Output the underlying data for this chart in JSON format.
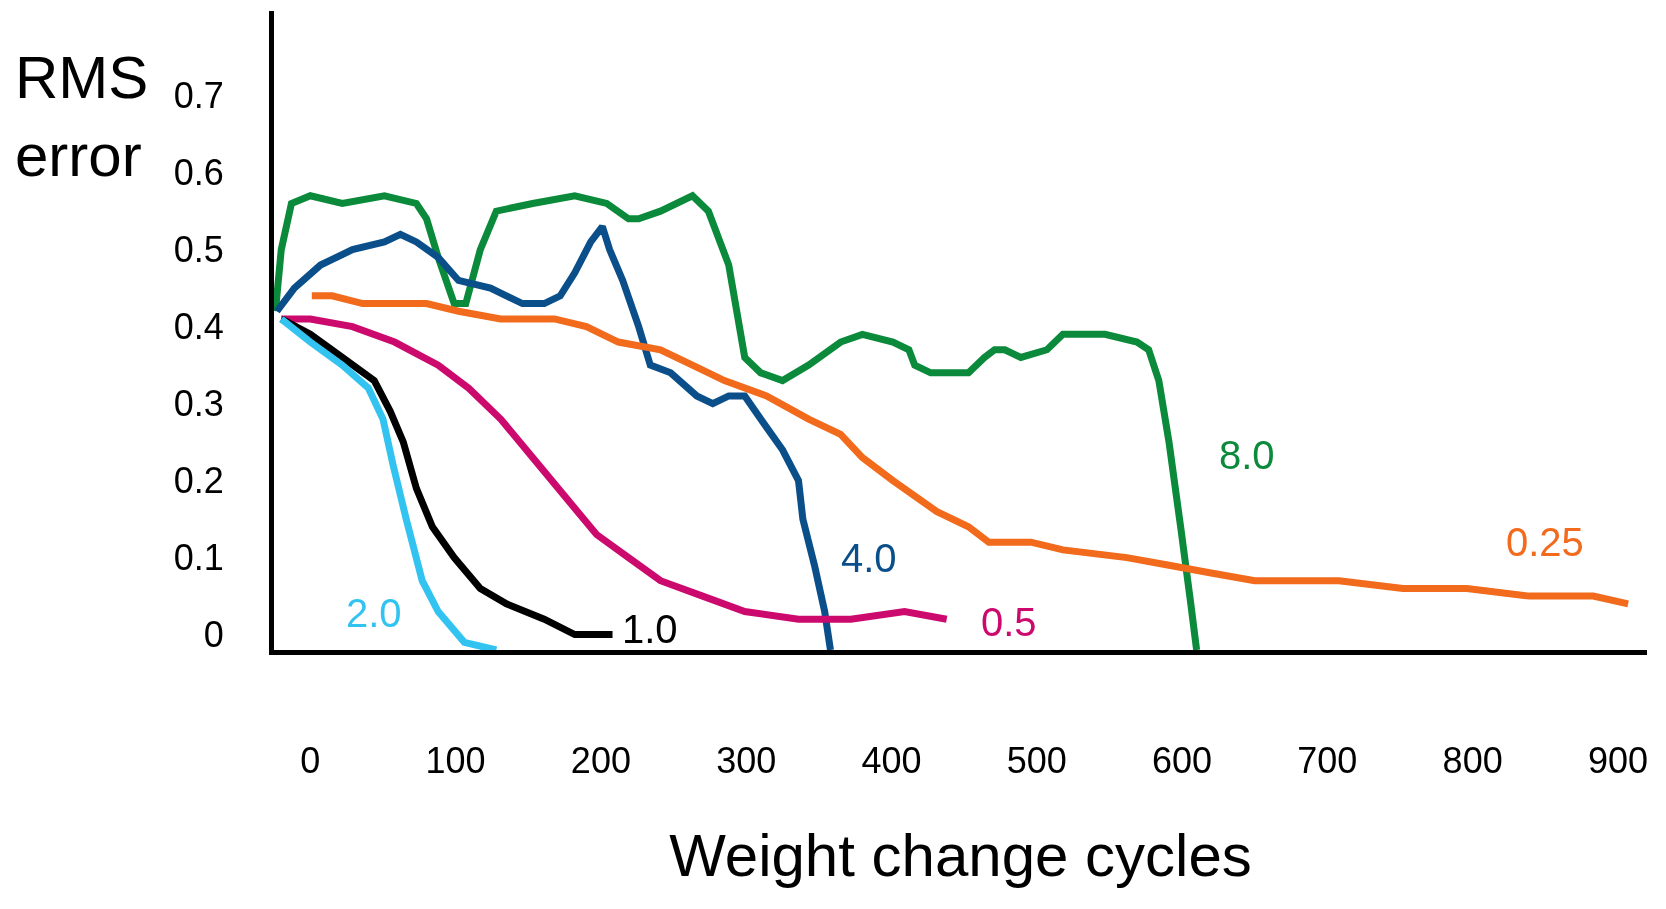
{
  "chart_data": {
    "type": "line",
    "xlabel": "Weight change cycles",
    "ylabel": "RMS\nerror",
    "xlim": [
      -25,
      920
    ],
    "ylim": [
      -0.02,
      0.81
    ],
    "xticks": [
      0,
      100,
      200,
      300,
      400,
      500,
      600,
      700,
      800,
      900
    ],
    "yticks": [
      {
        "value": 0,
        "label": "0"
      },
      0.1,
      0.2,
      0.3,
      0.4,
      0.5,
      0.6,
      0.7
    ],
    "marker": "none",
    "line_style": "solid",
    "series": [
      {
        "color": "#0a8a3a",
        "x": [
          -24,
          -20,
          -13,
          0,
          22,
          51,
          73,
          80,
          88,
          99,
          107,
          117,
          128,
          153,
          182,
          204,
          219,
          226,
          241,
          263,
          274,
          288,
          299,
          310,
          325,
          343,
          365,
          380,
          401,
          412,
          416,
          427,
          453,
          464,
          471,
          478,
          489,
          507,
          518,
          529,
          547,
          569,
          577,
          584,
          591,
          599,
          606,
          610
        ],
        "values": [
          0.42,
          0.5,
          0.56,
          0.57,
          0.56,
          0.57,
          0.56,
          0.54,
          0.49,
          0.43,
          0.43,
          0.5,
          0.55,
          0.56,
          0.57,
          0.56,
          0.54,
          0.54,
          0.55,
          0.57,
          0.55,
          0.48,
          0.36,
          0.34,
          0.33,
          0.35,
          0.38,
          0.39,
          0.38,
          0.37,
          0.35,
          0.34,
          0.34,
          0.36,
          0.37,
          0.37,
          0.36,
          0.37,
          0.39,
          0.39,
          0.39,
          0.38,
          0.37,
          0.33,
          0.25,
          0.14,
          0.04,
          -0.02
        ]
      },
      {
        "color": "#0a4f8a",
        "x": [
          -23,
          -11,
          7,
          29,
          51,
          62,
          73,
          88,
          102,
          124,
          146,
          161,
          172,
          182,
          193,
          201,
          206,
          215,
          226,
          234,
          248,
          266,
          277,
          288,
          299,
          310,
          325,
          336,
          339,
          347,
          354,
          358
        ],
        "values": [
          0.42,
          0.45,
          0.48,
          0.5,
          0.51,
          0.52,
          0.51,
          0.49,
          0.46,
          0.45,
          0.43,
          0.43,
          0.44,
          0.47,
          0.51,
          0.53,
          0.5,
          0.46,
          0.4,
          0.35,
          0.34,
          0.31,
          0.3,
          0.31,
          0.31,
          0.28,
          0.24,
          0.2,
          0.15,
          0.09,
          0.03,
          -0.02
        ]
      },
      {
        "color": "#f26a1b",
        "x": [
          1,
          15,
          36,
          58,
          80,
          102,
          131,
          168,
          190,
          212,
          241,
          263,
          285,
          314,
          343,
          365,
          380,
          401,
          431,
          453,
          467,
          496,
          518,
          562,
          591,
          620,
          650,
          708,
          752,
          796,
          839,
          883,
          907
        ],
        "values": [
          0.44,
          0.44,
          0.43,
          0.43,
          0.43,
          0.42,
          0.41,
          0.41,
          0.4,
          0.38,
          0.37,
          0.35,
          0.33,
          0.31,
          0.28,
          0.26,
          0.23,
          0.2,
          0.16,
          0.14,
          0.12,
          0.12,
          0.11,
          0.1,
          0.09,
          0.08,
          0.07,
          0.07,
          0.06,
          0.06,
          0.05,
          0.05,
          0.04
        ]
      },
      {
        "color": "#cc0a6e",
        "x": [
          -20,
          0,
          29,
          58,
          88,
          109,
          131,
          153,
          175,
          197,
          219,
          241,
          270,
          299,
          336,
          372,
          409,
          438
        ],
        "values": [
          0.41,
          0.41,
          0.4,
          0.38,
          0.35,
          0.32,
          0.28,
          0.23,
          0.18,
          0.13,
          0.1,
          0.07,
          0.05,
          0.03,
          0.02,
          0.02,
          0.03,
          0.02
        ]
      },
      {
        "color": "#000000",
        "x": [
          -20,
          0,
          22,
          44,
          55,
          64,
          73,
          84,
          99,
          117,
          135,
          161,
          182,
          208
        ],
        "values": [
          0.41,
          0.39,
          0.36,
          0.33,
          0.29,
          0.25,
          0.19,
          0.14,
          0.1,
          0.06,
          0.04,
          0.02,
          0.0,
          0.0
        ]
      },
      {
        "color": "#33c3f0",
        "x": [
          -20,
          0,
          22,
          40,
          50,
          57,
          66,
          77,
          88,
          106,
          128
        ],
        "values": [
          0.41,
          0.38,
          0.35,
          0.32,
          0.28,
          0.22,
          0.15,
          0.07,
          0.03,
          -0.01,
          -0.02
        ]
      }
    ],
    "annotations": [
      "8.0",
      "4.0",
      "0.25",
      "0.5",
      "1.0",
      "2.0"
    ]
  }
}
